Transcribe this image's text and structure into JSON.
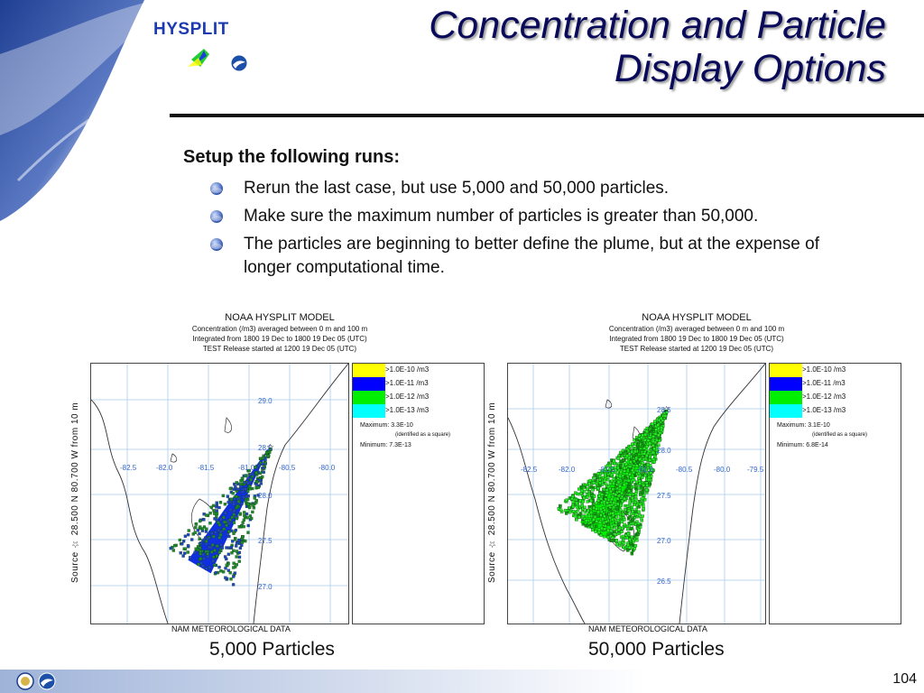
{
  "header": {
    "logo_text": "HYSPLIT",
    "title_line1": "Concentration and Particle",
    "title_line2": "Display Options"
  },
  "content": {
    "heading": "Setup the following runs:",
    "bullets": [
      "Rerun the last case, but use 5,000 and 50,000 particles.",
      "Make sure the maximum number of particles is greater than 50,000.",
      "The particles are beginning to better define the plume, but at the expense of longer computational time."
    ]
  },
  "panels": [
    {
      "model": "NOAA HYSPLIT MODEL",
      "line1": "Concentration  (/m3) averaged between     0 m and   100 m",
      "line2": "Integrated from 1800 19 Dec to 1800 19 Dec 05 (UTC)",
      "line3": "TEST Release started at 1200 19 Dec 05 (UTC)",
      "side_label": "Source ☆ 28.500 N 80.700 W    from     10 m",
      "lon_labels": [
        "-82.5",
        "-82.0",
        "-81.5",
        "-81.0",
        "-80.5",
        "-80.0"
      ],
      "lat_labels": [
        "29.0",
        "28.5",
        "28.0",
        "27.5",
        "27.0"
      ],
      "legend": [
        ">1.0E-10 /m3",
        ">1.0E-11 /m3",
        ">1.0E-12 /m3",
        ">1.0E-13 /m3"
      ],
      "maximum": "Maximum: 3.3E-10",
      "maximum_note": "(identified as a square)",
      "minimum": "Minimum: 7.3E-13",
      "footer": "NAM METEOROLOGICAL DATA",
      "caption": "5,000 Particles"
    },
    {
      "model": "NOAA HYSPLIT MODEL",
      "line1": "Concentration  (/m3) averaged between     0 m and   100 m",
      "line2": "Integrated from 1800 19 Dec to 1800 19 Dec 05 (UTC)",
      "line3": "TEST Release started at 1200 19 Dec 05 (UTC)",
      "side_label": "Source ☆ 28.500 N 80.700 W    from     10 m",
      "lon_labels": [
        "-82.5",
        "-82.0",
        "-81.5",
        "-81.0",
        "-80.5",
        "-80.0",
        "-79.5"
      ],
      "lat_labels": [
        "28.5",
        "28.0",
        "27.5",
        "27.0",
        "26.5"
      ],
      "legend": [
        ">1.0E-10 /m3",
        ">1.0E-11 /m3",
        ">1.0E-12 /m3",
        ">1.0E-13 /m3"
      ],
      "maximum": "Maximum: 3.1E-10",
      "maximum_note": "(identified as a square)",
      "minimum": "Minimum: 6.8E-14",
      "footer": "NAM METEOROLOGICAL DATA",
      "caption": "50,000 Particles"
    }
  ],
  "colors": {
    "legend": [
      "#ffff00",
      "#0000ff",
      "#00ee00",
      "#00ffff"
    ],
    "title": "#0a0a5a",
    "accent": "#1d3bb0"
  },
  "icons": {
    "bullet": "sphere-bullet-icon",
    "footer_logos": [
      "doc-seal-icon",
      "noaa-logo-icon"
    ]
  },
  "footer": {
    "page_number": "104"
  }
}
